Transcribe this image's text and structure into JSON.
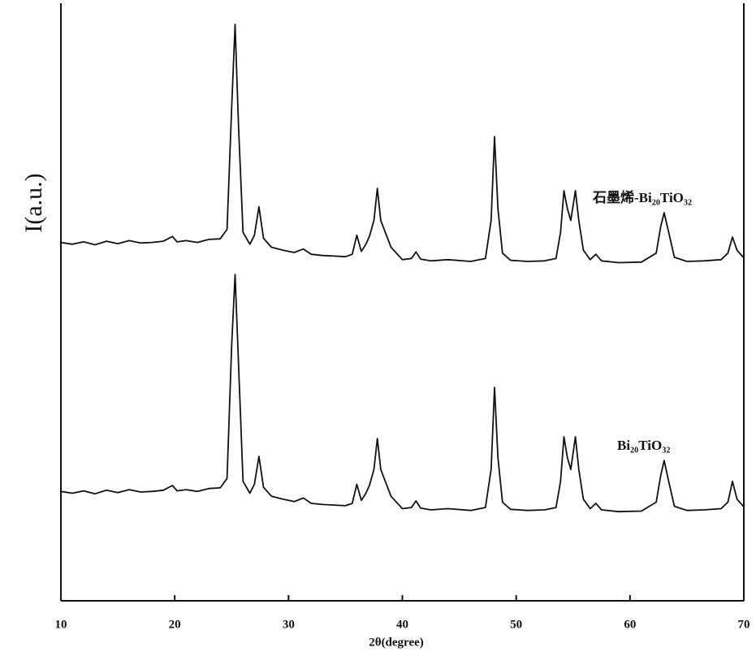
{
  "chart_data": {
    "type": "line",
    "x_label": "2θ(degree)",
    "y_label": "I(a.u.)",
    "x": [
      10,
      11,
      12,
      13,
      14,
      15,
      16,
      17,
      18,
      19,
      19.8,
      20.2,
      21,
      22,
      23,
      24,
      24.6,
      25.0,
      25.3,
      25.6,
      26.0,
      26.6,
      27.0,
      27.4,
      27.8,
      28.5,
      29.5,
      30.5,
      31.3,
      32,
      33,
      34,
      35,
      35.6,
      36.0,
      36.4,
      36.8,
      37.1,
      37.5,
      37.8,
      38.1,
      38.5,
      39,
      40,
      40.8,
      41.2,
      41.6,
      42.5,
      44,
      46,
      47.3,
      47.8,
      48.1,
      48.4,
      48.8,
      49.5,
      51,
      52.5,
      53.5,
      53.9,
      54.2,
      54.5,
      54.8,
      55.2,
      55.5,
      55.9,
      56.5,
      57.0,
      57.5,
      59,
      61,
      62.3,
      62.7,
      63.0,
      63.4,
      63.9,
      65,
      66.5,
      68,
      68.6,
      69.0,
      69.4,
      70
    ],
    "series": [
      {
        "name": "石墨烯-Bi₂₀TiO₃₂",
        "color": "#111111",
        "values": [
          60.3,
          60.0,
          60.4,
          59.9,
          60.5,
          60.1,
          60.6,
          60.2,
          60.3,
          60.5,
          61.3,
          60.4,
          60.6,
          60.3,
          60.8,
          60.9,
          62.5,
          83,
          97,
          80,
          62,
          60,
          61.5,
          66.3,
          61,
          59.5,
          59,
          58.6,
          59.2,
          58.3,
          58.1,
          58.0,
          57.9,
          58.3,
          61.5,
          58.8,
          60,
          61.3,
          64,
          69.4,
          64,
          62,
          59.5,
          57.4,
          57.6,
          58.7,
          57.5,
          57.2,
          57.4,
          57.1,
          57.6,
          64,
          78.1,
          66,
          58.5,
          57.3,
          57.1,
          57.2,
          57.6,
          62,
          69,
          66,
          64,
          69,
          64,
          59,
          57.4,
          58.3,
          57.2,
          56.9,
          57,
          58.5,
          63,
          65.3,
          62,
          57.8,
          57.1,
          57.2,
          57.4,
          58.5,
          61.2,
          59,
          57.7
        ]
      },
      {
        "name": "Bi₂₀TiO₃₂",
        "color": "#111111",
        "values": [
          18.4,
          18.1,
          18.5,
          18.0,
          18.6,
          18.2,
          18.7,
          18.3,
          18.4,
          18.6,
          19.4,
          18.5,
          18.7,
          18.4,
          18.9,
          19.0,
          20.6,
          43,
          54.9,
          40,
          20.1,
          18.1,
          19.6,
          24.3,
          19.1,
          17.6,
          17.1,
          16.7,
          17.3,
          16.4,
          16.2,
          16.1,
          16.0,
          16.4,
          19.6,
          16.9,
          18.1,
          19.4,
          22.1,
          27.3,
          22.1,
          20.1,
          17.6,
          15.5,
          15.7,
          16.8,
          15.6,
          15.3,
          15.5,
          15.2,
          15.7,
          22.1,
          35.9,
          24.1,
          16.6,
          15.4,
          15.2,
          15.3,
          15.7,
          20.1,
          27.6,
          24.1,
          22.1,
          27.6,
          22.1,
          17.1,
          15.5,
          16.4,
          15.3,
          15.0,
          15.1,
          16.6,
          21.1,
          23.6,
          20.1,
          15.9,
          15.2,
          15.3,
          15.5,
          16.6,
          20.1,
          17.1,
          15.8
        ]
      }
    ],
    "xlim": [
      10,
      70
    ],
    "xticks": [
      10,
      20,
      30,
      40,
      50,
      60,
      70
    ],
    "ylim": [
      0,
      100
    ]
  }
}
